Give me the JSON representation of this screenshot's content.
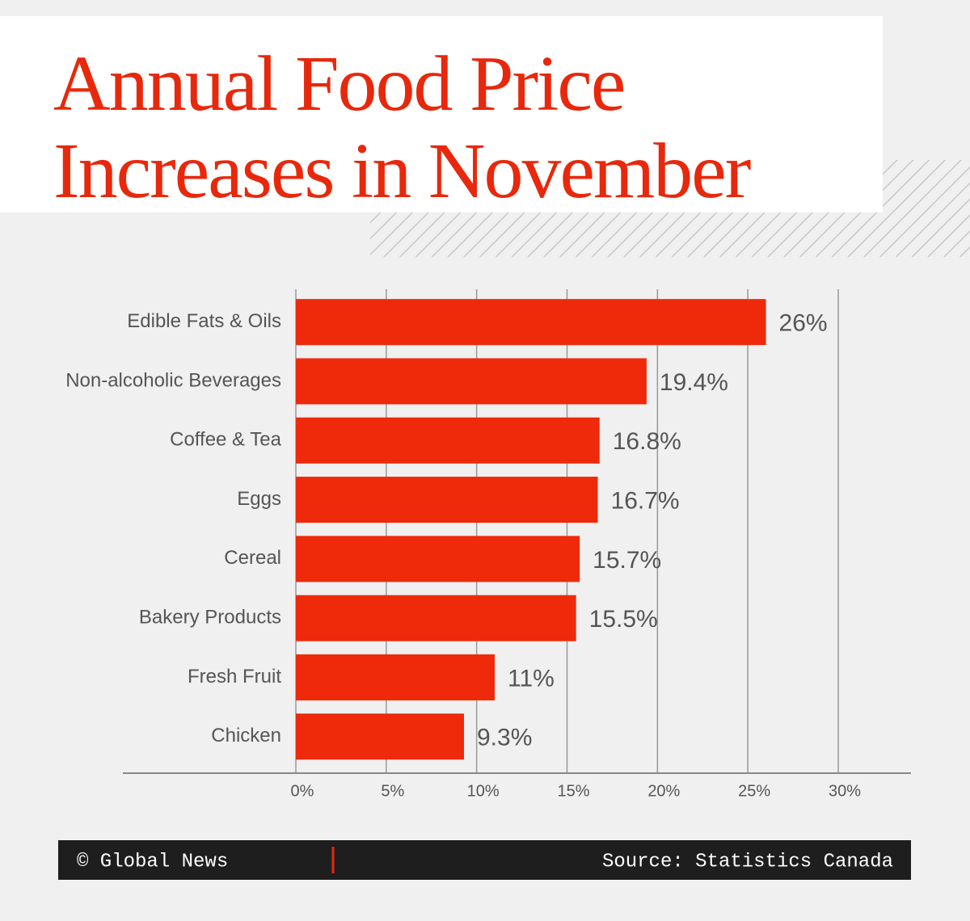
{
  "chart_data": {
    "type": "hbar",
    "title": "Annual Food Price Increases in November",
    "categories": [
      "Edible Fats & Oils",
      "Non-alcoholic Beverages",
      "Coffee & Tea",
      "Eggs",
      "Cereal",
      "Bakery Products",
      "Fresh Fruit",
      "Chicken"
    ],
    "values": [
      26,
      19.4,
      16.8,
      16.7,
      15.7,
      15.5,
      11,
      9.3
    ],
    "value_labels": [
      "26%",
      "19.4%",
      "16.8%",
      "16.7%",
      "15.7%",
      "15.5%",
      "11%",
      "9.3%"
    ],
    "color": "#ee2a0a",
    "xlim": [
      0,
      30
    ],
    "xticks": [
      {
        "value": 0,
        "label": "0%"
      },
      {
        "value": 5,
        "label": "5%"
      },
      {
        "value": 10,
        "label": "10%"
      },
      {
        "value": 15,
        "label": "15%"
      },
      {
        "value": 20,
        "label": "20%"
      },
      {
        "value": 25,
        "label": "25%"
      },
      {
        "value": 30,
        "label": "30%"
      }
    ],
    "grid": true,
    "credit": "© Global News",
    "source": "Source: Statistics Canada"
  }
}
